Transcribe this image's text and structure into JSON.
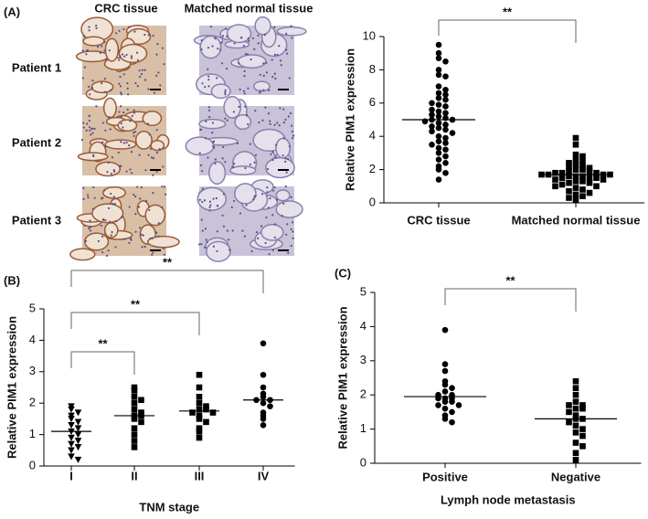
{
  "images": {
    "panel": "(A)",
    "columns": [
      "CRC tissue",
      "Matched normal tissue"
    ],
    "rows": [
      "Patient 1",
      "Patient 2",
      "Patient 3"
    ]
  },
  "chart_data": [
    {
      "type": "dot",
      "panel": "",
      "ylabel": "Relative PIM1 expression",
      "categories": [
        "CRC tissue",
        "Matched normal tissue"
      ],
      "markers": [
        "circle",
        "square"
      ],
      "points": [
        [
          9.5,
          9.0,
          8.7,
          8.5,
          8.0,
          7.7,
          7.6,
          7.0,
          6.8,
          6.6,
          6.5,
          6.3,
          6.2,
          6.0,
          5.9,
          5.8,
          5.6,
          5.5,
          5.4,
          5.3,
          5.2,
          5.1,
          5.0,
          5.0,
          4.9,
          4.8,
          4.7,
          4.6,
          4.5,
          4.4,
          4.3,
          4.2,
          4.0,
          3.9,
          3.7,
          3.6,
          3.5,
          3.3,
          3.2,
          3.0,
          2.8,
          2.6,
          2.4,
          2.2,
          2.0,
          1.8,
          1.4
        ],
        [
          3.9,
          3.5,
          2.9,
          2.8,
          2.6,
          2.5,
          2.4,
          2.3,
          2.2,
          2.2,
          2.1,
          2.0,
          2.0,
          1.9,
          1.9,
          1.8,
          1.8,
          1.8,
          1.7,
          1.7,
          1.7,
          1.7,
          1.6,
          1.6,
          1.6,
          1.5,
          1.5,
          1.5,
          1.4,
          1.4,
          1.3,
          1.3,
          1.2,
          1.2,
          1.1,
          1.0,
          1.0,
          0.9,
          0.8,
          0.7,
          0.6,
          0.5,
          0.4,
          0.3,
          0.2
        ]
      ],
      "medians": [
        5.0,
        1.7
      ],
      "ylim": [
        0,
        10
      ],
      "yticks": [
        0,
        2,
        4,
        6,
        8,
        10
      ],
      "comparisons": [
        {
          "from": 0,
          "to": 1,
          "label": "**"
        }
      ]
    },
    {
      "type": "dot",
      "panel": "(B)",
      "ylabel": "Relative PIM1 expression",
      "xlabel": "TNM stage",
      "categories": [
        "I",
        "II",
        "III",
        "IV"
      ],
      "markers": [
        "triangle",
        "square",
        "square",
        "circle"
      ],
      "points": [
        [
          1.9,
          1.8,
          1.7,
          1.6,
          1.5,
          1.4,
          1.3,
          1.2,
          1.1,
          1.0,
          0.9,
          0.8,
          0.7,
          0.6,
          0.5,
          0.3,
          0.2
        ],
        [
          2.5,
          2.4,
          2.2,
          2.1,
          2.0,
          1.8,
          1.7,
          1.6,
          1.6,
          1.5,
          1.4,
          1.2,
          1.0,
          0.8,
          0.6
        ],
        [
          2.9,
          2.5,
          2.2,
          2.0,
          1.9,
          1.8,
          1.8,
          1.7,
          1.7,
          1.6,
          1.5,
          1.4,
          1.2,
          1.1,
          0.9
        ],
        [
          3.9,
          2.9,
          2.5,
          2.3,
          2.2,
          2.1,
          2.1,
          2.0,
          1.9,
          1.7,
          1.6,
          1.5,
          1.3
        ]
      ],
      "medians": [
        1.1,
        1.6,
        1.75,
        2.1
      ],
      "ylim": [
        0,
        5
      ],
      "yticks": [
        0,
        1,
        2,
        3,
        4,
        5
      ],
      "comparisons": [
        {
          "from": 0,
          "to": 1,
          "label": "**"
        },
        {
          "from": 0,
          "to": 2,
          "label": "**"
        },
        {
          "from": 0,
          "to": 3,
          "label": "**"
        }
      ]
    },
    {
      "type": "dot",
      "panel": "(C)",
      "ylabel": "Relative PIM1 expression",
      "xlabel": "Lymph node metastasis",
      "categories": [
        "Positive",
        "Negative"
      ],
      "markers": [
        "circle",
        "square"
      ],
      "points": [
        [
          3.9,
          2.9,
          2.7,
          2.4,
          2.3,
          2.2,
          2.1,
          2.0,
          2.0,
          1.9,
          1.9,
          1.9,
          1.8,
          1.8,
          1.7,
          1.7,
          1.6,
          1.5,
          1.4,
          1.3,
          1.2
        ],
        [
          2.4,
          2.2,
          2.0,
          1.8,
          1.7,
          1.7,
          1.6,
          1.6,
          1.5,
          1.4,
          1.3,
          1.3,
          1.2,
          1.1,
          1.0,
          0.9,
          0.8,
          0.6,
          0.5,
          0.3,
          0.1
        ]
      ],
      "medians": [
        1.95,
        1.3
      ],
      "ylim": [
        0,
        5
      ],
      "yticks": [
        0,
        1,
        2,
        3,
        4,
        5
      ],
      "comparisons": [
        {
          "from": 0,
          "to": 1,
          "label": "**"
        }
      ]
    }
  ]
}
